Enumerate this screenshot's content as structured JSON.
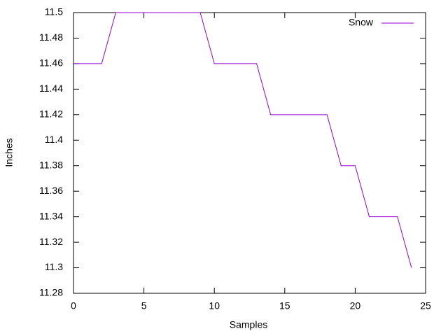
{
  "chart_data": {
    "type": "line",
    "x_label": "Samples",
    "y_label": "Inches",
    "x": [
      0,
      1,
      2,
      3,
      4,
      5,
      6,
      7,
      8,
      9,
      10,
      11,
      12,
      13,
      14,
      15,
      16,
      17,
      18,
      19,
      20,
      21,
      22,
      23,
      24
    ],
    "series": [
      {
        "name": "Snow",
        "color": "#9400d3",
        "values": [
          11.46,
          11.46,
          11.46,
          11.5,
          11.5,
          11.5,
          11.5,
          11.5,
          11.5,
          11.5,
          11.46,
          11.46,
          11.46,
          11.46,
          11.42,
          11.42,
          11.42,
          11.42,
          11.42,
          11.38,
          11.38,
          11.34,
          11.34,
          11.34,
          11.3
        ]
      }
    ],
    "xlim": [
      0,
      25
    ],
    "xticks": [
      0,
      5,
      10,
      15,
      20,
      25
    ],
    "ylim": [
      11.28,
      11.5
    ],
    "yticks": [
      11.28,
      11.3,
      11.32,
      11.34,
      11.36,
      11.38,
      11.4,
      11.42,
      11.44,
      11.46,
      11.48,
      11.5
    ],
    "grid": false,
    "legend": "top-right"
  }
}
